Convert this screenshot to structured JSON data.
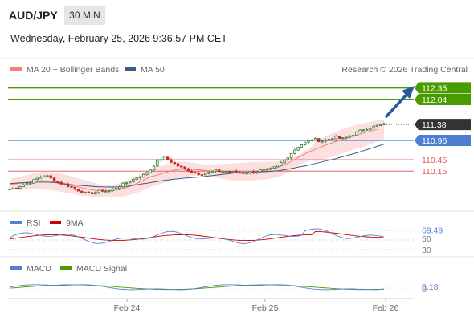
{
  "header": {
    "symbol": "AUD/JPY",
    "timeframe": "30 MIN",
    "datetime": "Wednesday, February 25, 2026 9:36:57 PM CET",
    "credit": "Research © 2026 Trading Central"
  },
  "colors": {
    "ma20": "#f08080",
    "ma50": "#3c5a8a",
    "bollinger_fill": "#fcd9d9",
    "resistance": "#4a9b00",
    "pivot": "#4a7fd4",
    "support": "#e05555",
    "current_tag": "#333333",
    "arrow": "#2a5b9f",
    "rsi": "#5b7fd0",
    "rsi_ma": "#cc0000",
    "macd": "#5b7fd0",
    "macd_signal": "#4a9b00",
    "candle_up": "#2e7d32",
    "candle_down": "#c62828"
  },
  "legend": {
    "main": [
      {
        "label": "MA 20 + Bollinger Bands",
        "color_key": "ma20"
      },
      {
        "label": "MA 50",
        "color_key": "ma50"
      }
    ],
    "rsi": [
      {
        "label": "RSI",
        "color_key": "rsi"
      },
      {
        "label": "9MA",
        "color_key": "rsi_ma"
      }
    ],
    "macd": [
      {
        "label": "MACD",
        "color_key": "macd"
      },
      {
        "label": "MACD Signal",
        "color_key": "macd_signal"
      }
    ]
  },
  "chart_data": {
    "type": "line",
    "x_ticks": [
      "Feb 24",
      "Feb 25",
      "Feb 26"
    ],
    "y_range": [
      109.2,
      112.55
    ],
    "levels": [
      {
        "value": 112.35,
        "label": "112.35",
        "kind": "resistance"
      },
      {
        "value": 112.04,
        "label": "112.04",
        "kind": "resistance"
      },
      {
        "value": 110.96,
        "label": "110.96",
        "kind": "pivot"
      },
      {
        "value": 110.45,
        "label": "110.45",
        "kind": "support"
      },
      {
        "value": 110.15,
        "label": "110.15",
        "kind": "support"
      }
    ],
    "current_price": {
      "value": 111.38,
      "label": "111.38"
    },
    "price_path": [
      109.68,
      109.72,
      109.8,
      109.86,
      109.97,
      110.05,
      109.94,
      109.84,
      109.79,
      109.7,
      109.62,
      109.55,
      109.58,
      109.64,
      109.62,
      109.7,
      109.8,
      109.88,
      109.98,
      110.05,
      110.2,
      110.45,
      110.5,
      110.38,
      110.27,
      110.19,
      110.12,
      110.07,
      110.1,
      110.16,
      110.14,
      110.14,
      110.12,
      110.1,
      110.12,
      110.15,
      110.18,
      110.2,
      110.3,
      110.45,
      110.65,
      110.82,
      110.92,
      111.0,
      110.94,
      110.98,
      111.05,
      111.0,
      111.06,
      111.15,
      111.25,
      111.3,
      111.35,
      111.38
    ],
    "ma20_path": [
      109.8,
      109.82,
      109.85,
      109.88,
      109.9,
      109.89,
      109.86,
      109.82,
      109.77,
      109.72,
      109.68,
      109.64,
      109.63,
      109.63,
      109.66,
      109.72,
      109.8,
      109.9,
      110.0,
      110.05,
      110.12,
      110.18,
      110.2,
      110.2,
      110.19,
      110.17,
      110.15,
      110.14,
      110.13,
      110.13,
      110.14,
      110.15,
      110.16,
      110.18,
      110.22,
      110.3,
      110.4,
      110.52,
      110.63,
      110.72,
      110.8,
      110.88,
      110.95,
      111.02,
      111.08,
      111.14,
      111.2,
      111.25
    ],
    "ma50_path": [
      109.82,
      109.84,
      109.85,
      109.86,
      109.86,
      109.84,
      109.8,
      109.78,
      109.76,
      109.74,
      109.73,
      109.73,
      109.74,
      109.78,
      109.82,
      109.86,
      109.9,
      109.93,
      109.96,
      109.98,
      110.0,
      110.03,
      110.06,
      110.09,
      110.11,
      110.12,
      110.13,
      110.14,
      110.16,
      110.2,
      110.25,
      110.3,
      110.36,
      110.42,
      110.48,
      110.55,
      110.62,
      110.7,
      110.78,
      110.86
    ],
    "rsi": {
      "last": 69.49,
      "levels": [
        70,
        50,
        30
      ],
      "ticks": [
        "69.49",
        "50",
        "30"
      ]
    },
    "macd": {
      "last": 0.18,
      "ticks": [
        "0.18",
        "0"
      ]
    }
  }
}
